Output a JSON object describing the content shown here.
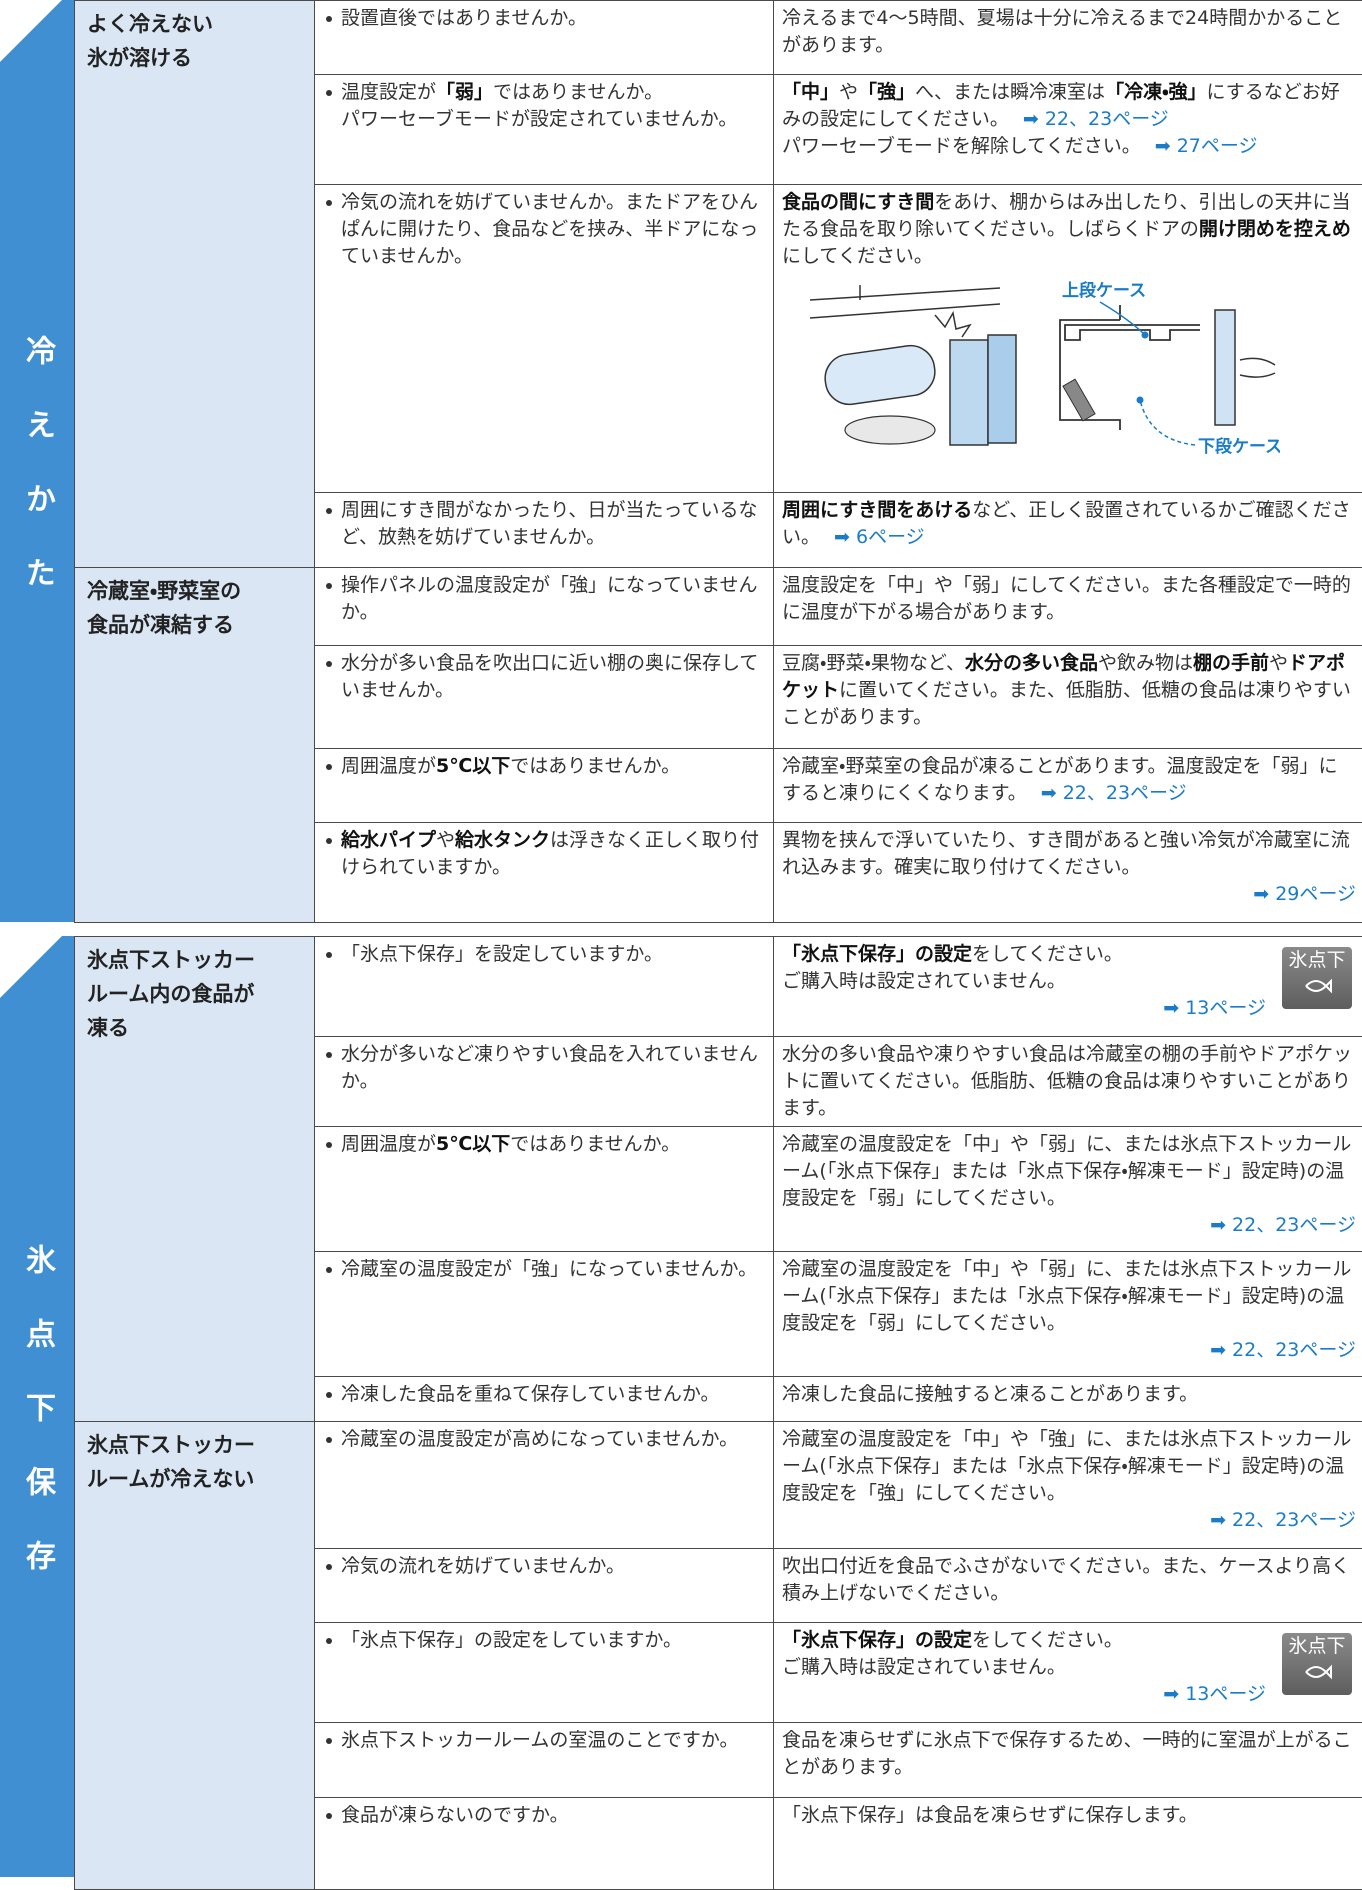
{
  "sections": [
    {
      "tab": "冷えかた",
      "groups": [
        {
          "category": [
            "よく冷えない",
            "氷が溶ける"
          ],
          "rows": [
            {
              "check": [
                "設置直後ではありませんか。"
              ],
              "remedy": [
                "冷えるまで4〜5時間、夏場は十分に冷えるまで24時間かかることがあります。"
              ]
            },
            {
              "check": [
                [
                  "温度設定が",
                  {
                    "b": "「弱」"
                  },
                  "ではありませんか。"
                ],
                "パワーセーブモードが設定されていませんか。"
              ],
              "remedy": [
                [
                  {
                    "b": "「中」"
                  },
                  "や",
                  {
                    "b": "「強」"
                  },
                  "へ、または瞬冷凍室は",
                  {
                    "b": "「冷凍・強」"
                  },
                  "にするなどお好みの設定にしてください。",
                  {
                    "link": "➡ 22、23ページ"
                  }
                ],
                [
                  "パワーセーブモードを解除してください。",
                  {
                    "link": "➡ 27ページ"
                  }
                ]
              ]
            },
            {
              "check": [
                "冷気の流れを妨げていませんか。またドアをひんぱんに開けたり、食品などを挟み、半ドアになっていませんか。"
              ],
              "remedy": [
                [
                  {
                    "b": "食品の間にすき間"
                  },
                  "をあけ、棚からはみ出したり、引出しの天井に当たる食品を取り除いてください。しばらくドアの",
                  {
                    "b": "開け閉めを控えめ"
                  },
                  "にしてください。"
                ]
              ],
              "figure": [
                "上段ケース",
                "下段ケース"
              ]
            },
            {
              "check": [
                "周囲にすき間がなかったり、日が当たっているなど、放熱を妨げていませんか。"
              ],
              "remedy": [
                [
                  {
                    "b": "周囲にすき間をあける"
                  },
                  "など、正しく設置されているかご確認ください。",
                  {
                    "link": "➡ 6ページ"
                  }
                ]
              ]
            }
          ]
        },
        {
          "category": [
            "冷蔵室・野菜室の",
            "食品が凍結する"
          ],
          "rows": [
            {
              "check": [
                "操作パネルの温度設定が「強」になっていませんか。"
              ],
              "remedy": [
                "温度設定を「中」や「弱」にしてください。また各種設定で一時的に温度が下がる場合があります。"
              ]
            },
            {
              "check": [
                "水分が多い食品を吹出口に近い棚の奥に保存していませんか。"
              ],
              "remedy": [
                [
                  "豆腐・野菜・果物など、",
                  {
                    "b": "水分の多い食品"
                  },
                  "や飲み物は",
                  {
                    "b": "棚の手前"
                  },
                  "や",
                  {
                    "b": "ドアポケット"
                  },
                  "に置いてください。また、低脂肪、低糖の食品は凍りやすいことがあります。"
                ]
              ]
            },
            {
              "check": [
                [
                  "周囲温度が",
                  {
                    "b": "5℃以下"
                  },
                  "ではありませんか。"
                ]
              ],
              "remedy": [
                [
                  "冷蔵室・野菜室の食品が凍ることがあります。温度設定を「弱」にすると凍りにくくなります。",
                  {
                    "link": "➡ 22、23ページ"
                  }
                ]
              ]
            },
            {
              "check": [
                [
                  {
                    "b": "給水パイプ"
                  },
                  "や",
                  {
                    "b": "給水タンク"
                  },
                  "は浮きなく正しく取り付けられていますか。"
                ]
              ],
              "remedy": [
                "異物を挟んで浮いていたり、すき間があると強い冷気が冷蔵室に流れ込みます。確実に取り付けてください。",
                [
                  {
                    "link": "➡ 29ページ"
                  }
                ]
              ]
            }
          ]
        }
      ]
    },
    {
      "tab": "氷点下保存",
      "groups": [
        {
          "category": [
            "氷点下ストッカー",
            "ルーム内の食品が",
            "凍る"
          ],
          "rows": [
            {
              "check": [
                "「氷点下保存」を設定していますか。"
              ],
              "remedy": [
                [
                  {
                    "b": "「氷点下保存」の設定"
                  },
                  "をしてください。"
                ],
                "ご購入時は設定されていません。",
                [
                  {
                    "link": "➡ 13ページ"
                  }
                ]
              ],
              "badge": "氷点下"
            },
            {
              "check": [
                "水分が多いなど凍りやすい食品を入れていませんか。"
              ],
              "remedy": [
                "水分の多い食品や凍りやすい食品は冷蔵室の棚の手前やドアポケットに置いてください。低脂肪、低糖の食品は凍りやすいことがあります。"
              ]
            },
            {
              "check": [
                [
                  "周囲温度が",
                  {
                    "b": "5℃以下"
                  },
                  "ではありませんか。"
                ]
              ],
              "remedy": [
                "冷蔵室の温度設定を「中」や「弱」に、または氷点下ストッカールーム(「氷点下保存」または「氷点下保存・解凍モード」設定時)の温度設定を「弱」にしてください。",
                [
                  {
                    "link": "➡ 22、23ページ"
                  }
                ]
              ]
            },
            {
              "check": [
                "冷蔵室の温度設定が「強」になっていませんか。"
              ],
              "remedy": [
                "冷蔵室の温度設定を「中」や「弱」に、または氷点下ストッカールーム(「氷点下保存」または「氷点下保存・解凍モード」設定時)の温度設定を「弱」にしてください。",
                [
                  {
                    "link": "➡ 22、23ページ"
                  }
                ]
              ]
            },
            {
              "check": [
                "冷凍した食品を重ねて保存していませんか。"
              ],
              "remedy": [
                "冷凍した食品に接触すると凍ることがあります。"
              ]
            }
          ]
        },
        {
          "category": [
            "氷点下ストッカー",
            "ルームが冷えない"
          ],
          "rows": [
            {
              "check": [
                "冷蔵室の温度設定が高めになっていませんか。"
              ],
              "remedy": [
                "冷蔵室の温度設定を「中」や「強」に、または氷点下ストッカールーム(「氷点下保存」または「氷点下保存・解凍モード」設定時)の温度設定を「強」にしてください。",
                [
                  {
                    "link": "➡ 22、23ページ"
                  }
                ]
              ]
            },
            {
              "check": [
                "冷気の流れを妨げていませんか。"
              ],
              "remedy": [
                "吹出口付近を食品でふさがないでください。また、ケースより高く積み上げないでください。"
              ]
            },
            {
              "check": [
                "「氷点下保存」の設定をしていますか。"
              ],
              "remedy": [
                [
                  {
                    "b": "「氷点下保存」の設定"
                  },
                  "をしてください。"
                ],
                "ご購入時は設定されていません。",
                [
                  {
                    "link": "➡ 13ページ"
                  }
                ]
              ],
              "badge": "氷点下"
            },
            {
              "check": [
                "氷点下ストッカールームの室温のことですか。"
              ],
              "remedy": [
                "食品を凍らせずに氷点下で保存するため、一時的に室温が上がることがあります。"
              ]
            },
            {
              "check": [
                "食品が凍らないのですか。"
              ],
              "remedy": [
                "「氷点下保存」は食品を凍らせずに保存します。"
              ]
            }
          ]
        }
      ]
    }
  ]
}
